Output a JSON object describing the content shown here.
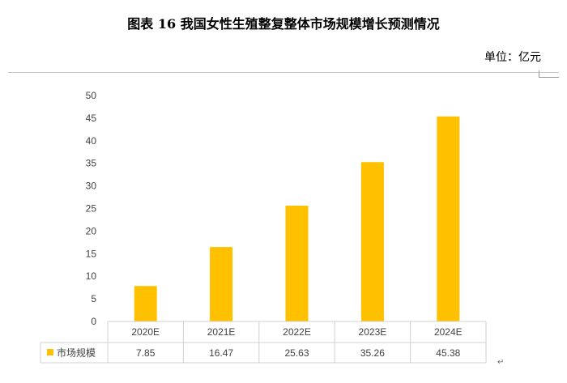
{
  "title": "图表 16   我国女性生殖整复整体市场规模增长预测情况",
  "unit_label": "单位：亿元",
  "chart_data": {
    "type": "bar",
    "categories": [
      "2020E",
      "2021E",
      "2022E",
      "2023E",
      "2024E"
    ],
    "series": [
      {
        "name": "市场规模",
        "values": [
          7.85,
          16.47,
          25.63,
          35.26,
          45.38
        ]
      }
    ],
    "ylim": [
      0,
      50
    ],
    "yticks": [
      0,
      5,
      10,
      15,
      20,
      25,
      30,
      35,
      40,
      45,
      50
    ],
    "grid": false,
    "legend": "data-table",
    "bar_color": "#ffc000"
  }
}
